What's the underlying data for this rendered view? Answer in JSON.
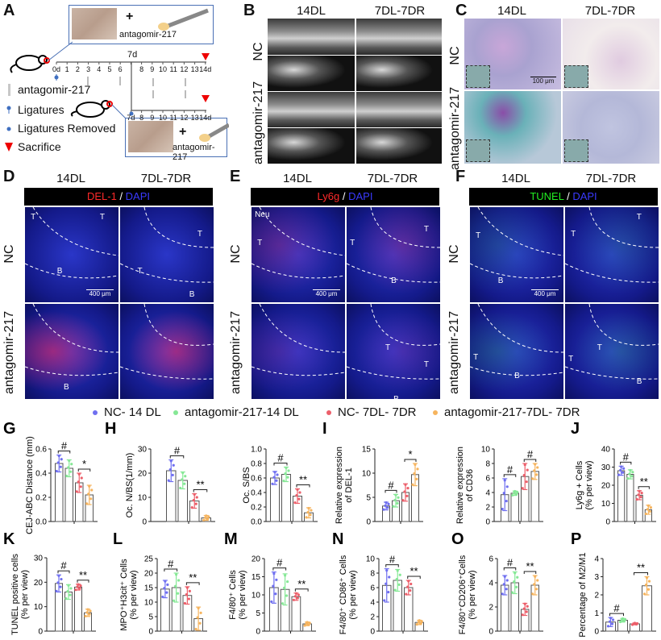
{
  "panel_A": {
    "letter": "A",
    "box_plus": "+",
    "box_label": "antagomir-217",
    "day7_label": "7d",
    "timeline_top_days": [
      "0d",
      "1",
      "2",
      "3",
      "4",
      "5",
      "6",
      "8",
      "9",
      "10",
      "11",
      "12",
      "13",
      "14d"
    ],
    "timeline_bottom_days": [
      "7d",
      "8",
      "9",
      "10",
      "11",
      "12",
      "13",
      "14d"
    ],
    "legend": [
      {
        "icon": "syringe-bar-icon",
        "label": "antagomir-217"
      },
      {
        "icon": "ligature-pin-icon",
        "label": "Ligatures"
      },
      {
        "icon": "blue-dot-icon",
        "label": "Ligatures Removed"
      },
      {
        "icon": "red-triangle-icon",
        "label": "Sacrifice"
      }
    ]
  },
  "panel_B": {
    "letter": "B",
    "columns": [
      "14DL",
      "7DL-7DR"
    ],
    "rows": [
      "NC",
      "antagomir-217"
    ]
  },
  "panel_C": {
    "letter": "C",
    "columns": [
      "14DL",
      "7DL-7DR"
    ],
    "rows": [
      "NC",
      "antagomir-217"
    ],
    "scale_bar": "100 μm"
  },
  "panel_D": {
    "letter": "D",
    "columns": [
      "14DL",
      "7DL-7DR"
    ],
    "rows": [
      "NC",
      "antagomir-217"
    ],
    "stain": [
      {
        "text": "DEL-1",
        "color": "#ff2a2a"
      },
      {
        "text": " / ",
        "color": "#ffffff"
      },
      {
        "text": "DAPI",
        "color": "#3a3aff"
      }
    ],
    "scale_bar": "400 μm",
    "region_labels": [
      "T",
      "T",
      "B",
      "T",
      "T",
      "B",
      "B"
    ]
  },
  "panel_E": {
    "letter": "E",
    "columns": [
      "14DL",
      "7DL-7DR"
    ],
    "rows": [
      "NC",
      "antagomir-217"
    ],
    "stain": [
      {
        "text": "Ly6g",
        "color": "#ff2a2a"
      },
      {
        "text": " / ",
        "color": "#ffffff"
      },
      {
        "text": "DAPI",
        "color": "#3a3aff"
      }
    ],
    "scale_bar": "400 μm",
    "region_labels": [
      "Neu",
      "T",
      "T",
      "T",
      "B",
      "T",
      "T",
      "B"
    ]
  },
  "panel_F": {
    "letter": "F",
    "columns": [
      "14DL",
      "7DL-7DR"
    ],
    "rows": [
      "NC",
      "antagomir-217"
    ],
    "stain": [
      {
        "text": "TUNEL",
        "color": "#22ee22"
      },
      {
        "text": " / ",
        "color": "#ffffff"
      },
      {
        "text": "DAPI",
        "color": "#3a3aff"
      }
    ],
    "scale_bar": "400 μm",
    "region_labels": [
      "T",
      "B",
      "T",
      "T",
      "T",
      "B",
      "T",
      "T",
      "B"
    ]
  },
  "legend": [
    {
      "label": "NC- 14 DL",
      "color": "#6f6ff0"
    },
    {
      "label": "antagomir-217-14 DL",
      "color": "#86e896"
    },
    {
      "label": "NC- 7DL- 7DR",
      "color": "#ec5f6a"
    },
    {
      "label": "antagomir-217-7DL- 7DR",
      "color": "#f6b45e"
    }
  ],
  "chart_data": [
    {
      "panel": "G",
      "type": "bar",
      "ylabel": [
        "CEJ-ABC Distance (mm)"
      ],
      "ylim": [
        0,
        0.6
      ],
      "yticks": [
        "0.0",
        "0.2",
        "0.4",
        "0.6"
      ],
      "values": [
        0.48,
        0.44,
        0.32,
        0.22
      ],
      "errors": [
        0.07,
        0.07,
        0.08,
        0.08
      ],
      "sig": [
        {
          "pair": [
            0,
            1
          ],
          "text": "#"
        },
        {
          "pair": [
            2,
            3
          ],
          "text": "*"
        }
      ]
    },
    {
      "panel": "H",
      "type": "bar",
      "ylabel": [
        "Oc. N/BS(1/mm)"
      ],
      "ylim": [
        0,
        30
      ],
      "yticks": [
        "0",
        "10",
        "20",
        "30"
      ],
      "values": [
        21,
        17,
        8.5,
        1.5
      ],
      "errors": [
        4.5,
        3.5,
        3,
        1
      ],
      "sig": [
        {
          "pair": [
            0,
            1
          ],
          "text": "#"
        },
        {
          "pair": [
            2,
            3
          ],
          "text": "**"
        }
      ]
    },
    {
      "panel": "",
      "type": "bar",
      "ylabel": [
        "Oc. S/BS"
      ],
      "ylim": [
        0,
        1
      ],
      "yticks": [
        "0.0",
        "0.2",
        "0.4",
        "0.6",
        "0.8",
        "1.0"
      ],
      "values": [
        0.6,
        0.65,
        0.35,
        0.12
      ],
      "errors": [
        0.09,
        0.1,
        0.1,
        0.07
      ],
      "sig": [
        {
          "pair": [
            0,
            1
          ],
          "text": "#"
        },
        {
          "pair": [
            2,
            3
          ],
          "text": "**"
        }
      ]
    },
    {
      "panel": "I",
      "type": "bar",
      "ylabel": [
        "Relative expression",
        "of DEL-1"
      ],
      "ylim": [
        0,
        15
      ],
      "yticks": [
        "0",
        "5",
        "10",
        "15"
      ],
      "values": [
        3.2,
        4.3,
        6,
        9.7
      ],
      "errors": [
        0.8,
        1.3,
        1.8,
        2.3
      ],
      "sig": [
        {
          "pair": [
            0,
            1
          ],
          "text": "#"
        },
        {
          "pair": [
            2,
            3
          ],
          "text": "*"
        }
      ]
    },
    {
      "panel": "",
      "type": "bar",
      "ylabel": [
        "Relative expression",
        "of CD36"
      ],
      "ylim": [
        0,
        10
      ],
      "yticks": [
        "0",
        "2",
        "4",
        "6",
        "8",
        "10"
      ],
      "values": [
        3.7,
        3.9,
        6.2,
        6.9
      ],
      "errors": [
        2.2,
        0.3,
        1.8,
        1.1
      ],
      "sig": [
        {
          "pair": [
            0,
            1
          ],
          "text": "#"
        },
        {
          "pair": [
            2,
            3
          ],
          "text": "#"
        }
      ]
    },
    {
      "panel": "J",
      "type": "bar",
      "ylabel": [
        "Ly6g + Cells",
        "(% per view)"
      ],
      "ylim": [
        0,
        40
      ],
      "yticks": [
        "0",
        "10",
        "20",
        "30",
        "40"
      ],
      "values": [
        28,
        26,
        14.5,
        6.5
      ],
      "errors": [
        2.5,
        2.5,
        2.5,
        2.5
      ],
      "sig": [
        {
          "pair": [
            0,
            1
          ],
          "text": "#"
        },
        {
          "pair": [
            2,
            3
          ],
          "text": "**"
        }
      ]
    },
    {
      "panel": "K",
      "type": "bar",
      "ylabel": [
        "TUNEL positive cells",
        "(% per view)"
      ],
      "ylim": [
        0,
        30
      ],
      "yticks": [
        "0",
        "10",
        "20",
        "30"
      ],
      "values": [
        19.5,
        16,
        18,
        7.5
      ],
      "errors": [
        3.5,
        3,
        1.2,
        1.5
      ],
      "sig": [
        {
          "pair": [
            0,
            1
          ],
          "text": "#"
        },
        {
          "pair": [
            2,
            3
          ],
          "text": "**"
        }
      ]
    },
    {
      "panel": "L",
      "type": "bar",
      "ylabel": [
        "MPO⁺H3cit⁺ Cells",
        "(% per view)"
      ],
      "ylim": [
        0,
        25
      ],
      "yticks": [
        "0",
        "5",
        "10",
        "15",
        "20",
        "25"
      ],
      "values": [
        14.5,
        15,
        12.3,
        4.3
      ],
      "errors": [
        3,
        5,
        3,
        4
      ],
      "sig": [
        {
          "pair": [
            0,
            1
          ],
          "text": "#"
        },
        {
          "pair": [
            2,
            3
          ],
          "text": "**"
        }
      ]
    },
    {
      "panel": "M",
      "type": "bar",
      "ylabel": [
        "F4/80⁺ Cells",
        "(% per view)"
      ],
      "ylim": [
        0,
        20
      ],
      "yticks": [
        "0",
        "5",
        "10",
        "15",
        "20"
      ],
      "values": [
        12,
        11.5,
        9.5,
        2
      ],
      "errors": [
        4.3,
        4.3,
        1,
        0.5
      ],
      "sig": [
        {
          "pair": [
            0,
            1
          ],
          "text": "#"
        },
        {
          "pair": [
            2,
            3
          ],
          "text": "**"
        }
      ]
    },
    {
      "panel": "N",
      "type": "bar",
      "ylabel": [
        "F4/80⁺ CD86⁺ Cells",
        "(% per view)"
      ],
      "ylim": [
        0,
        10
      ],
      "yticks": [
        "0",
        "2",
        "4",
        "6",
        "8",
        "10"
      ],
      "values": [
        6.3,
        7,
        6,
        1.2
      ],
      "errors": [
        2.3,
        1.5,
        1,
        0.3
      ],
      "sig": [
        {
          "pair": [
            0,
            1
          ],
          "text": "#"
        },
        {
          "pair": [
            2,
            3
          ],
          "text": "**"
        }
      ]
    },
    {
      "panel": "O",
      "type": "bar",
      "ylabel": [
        "F4/80⁺CD206⁺Cells",
        "(% per view)"
      ],
      "ylim": [
        0,
        6
      ],
      "yticks": [
        "0",
        "2",
        "4",
        "6"
      ],
      "values": [
        3.8,
        4,
        1.8,
        3.8
      ],
      "errors": [
        0.8,
        0.9,
        0.5,
        0.8
      ],
      "sig": [
        {
          "pair": [
            0,
            1
          ],
          "text": "#"
        },
        {
          "pair": [
            2,
            3
          ],
          "text": "**"
        }
      ]
    },
    {
      "panel": "P",
      "type": "bar",
      "ylabel": [
        "Percentage of  M2/M1"
      ],
      "ylim": [
        0,
        4
      ],
      "yticks": [
        "0",
        "1",
        "2",
        "3",
        "4"
      ],
      "values": [
        0.5,
        0.6,
        0.4,
        2.5
      ],
      "errors": [
        0.25,
        0.1,
        0.05,
        0.5
      ],
      "sig": [
        {
          "pair": [
            0,
            1
          ],
          "text": "#"
        },
        {
          "pair": [
            2,
            3
          ],
          "text": "**"
        }
      ]
    }
  ]
}
